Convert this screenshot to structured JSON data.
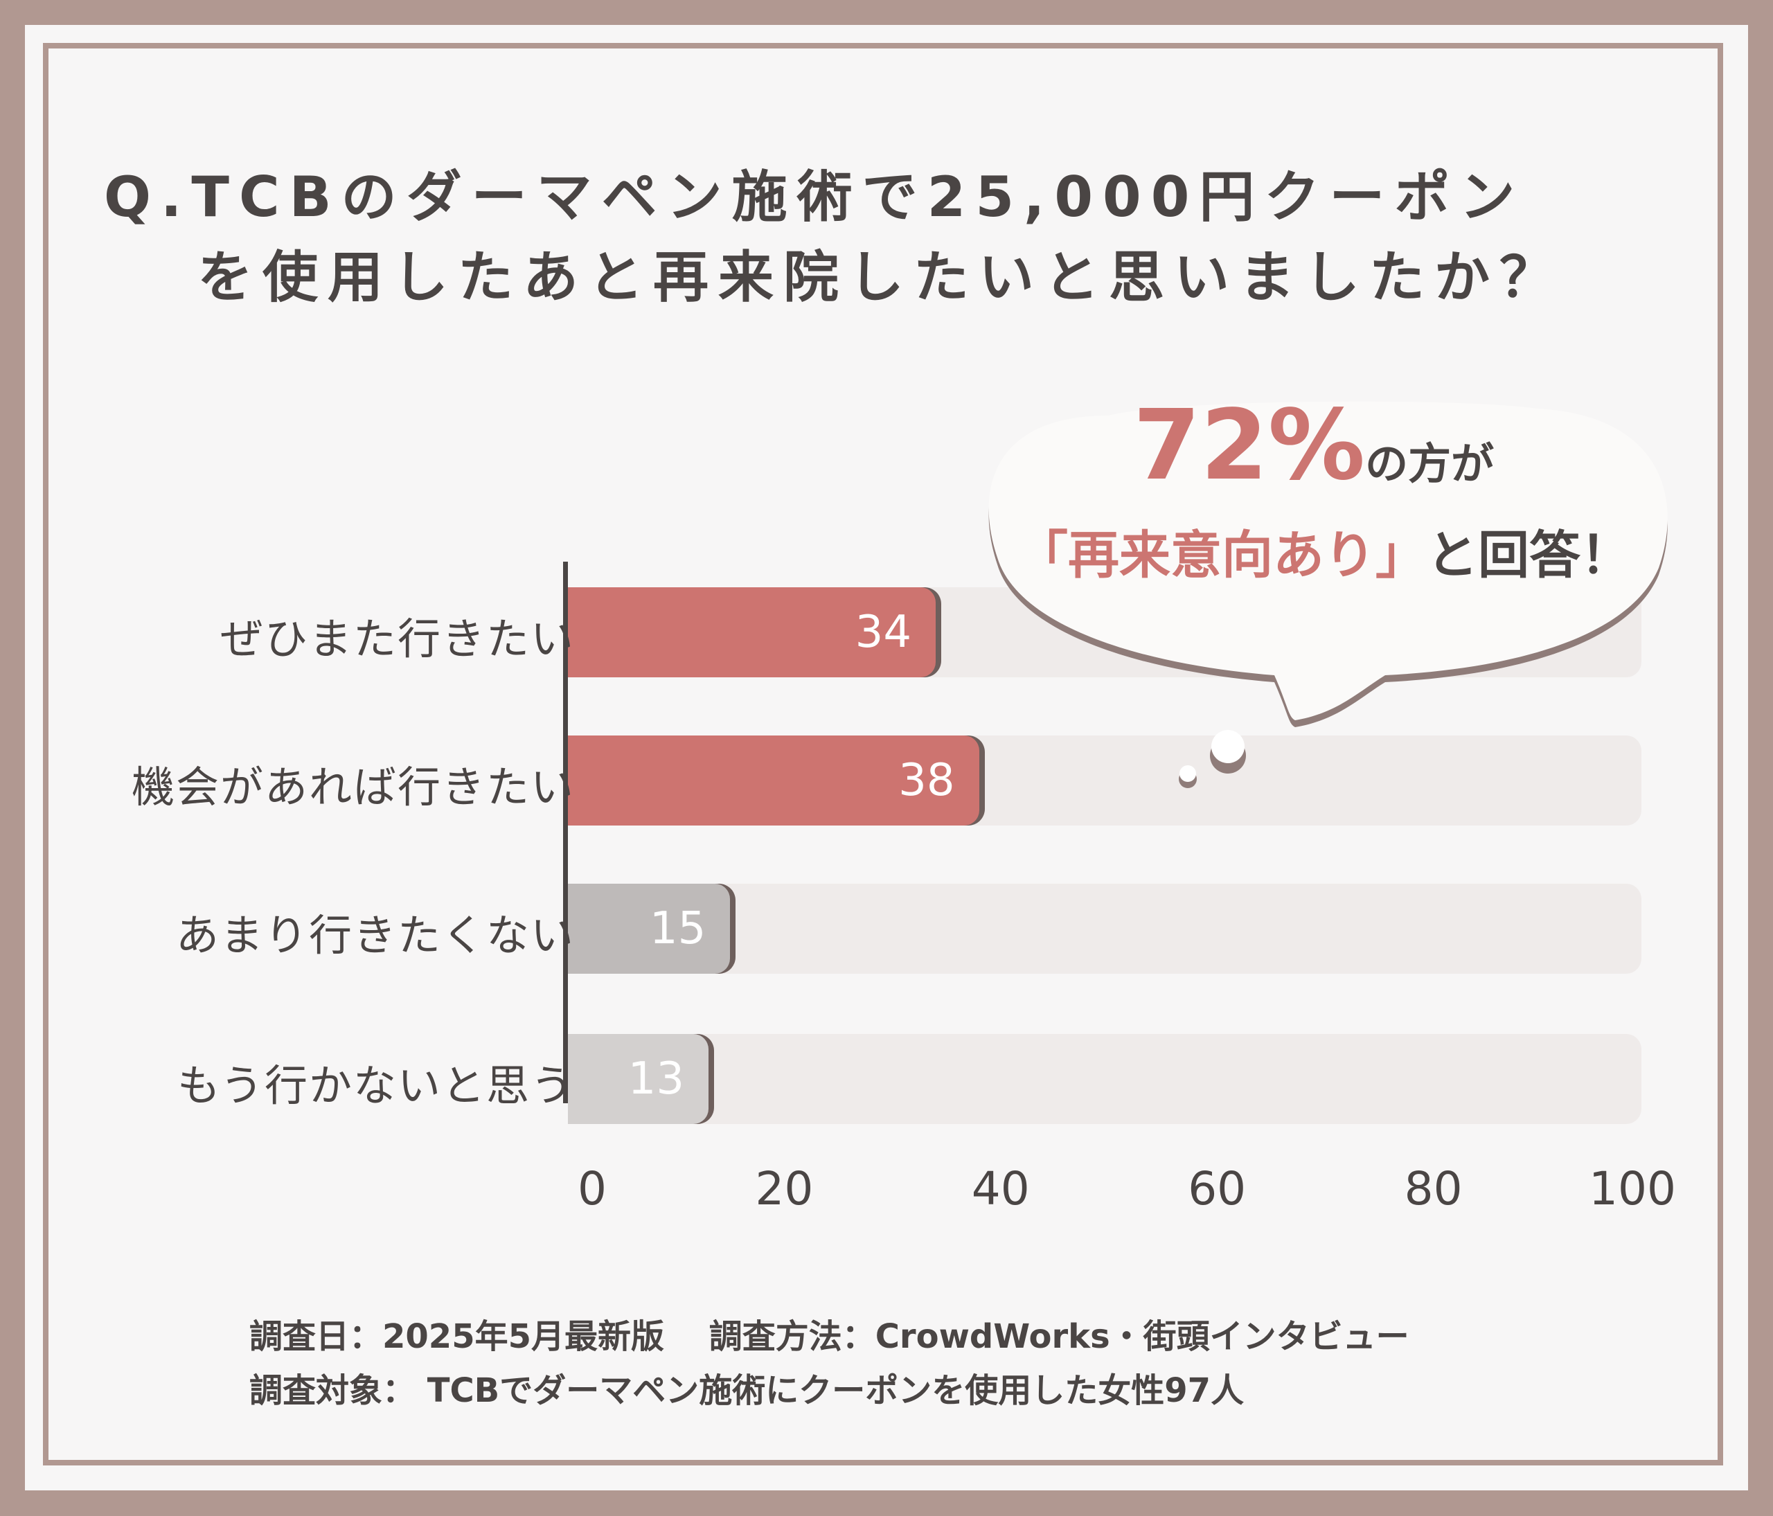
{
  "question": {
    "line1": "Q.TCBのダーマペン施術で25,000円クーポン",
    "line2": "を使用したあと再来院したいと思いましたか？"
  },
  "callout": {
    "percent": "72%",
    "suffix": "の方が",
    "highlight": "「再来意向あり」",
    "rest": "と回答！"
  },
  "colors": {
    "positive_bar": "#cd7470",
    "negative_bar_1": "#bebab9",
    "negative_bar_2": "#d3d0cf",
    "track": "#efebea",
    "frame": "#b19891",
    "text": "#4a4544"
  },
  "chart_data": {
    "type": "bar",
    "orientation": "horizontal",
    "categories": [
      "ぜひまた行きたい",
      "機会があれば行きたい",
      "あまり行きたくない",
      "もう行かないと思う"
    ],
    "values": [
      34,
      38,
      15,
      13
    ],
    "xlim": [
      0,
      100
    ],
    "x_ticks": [
      "0",
      "20",
      "40",
      "60",
      "80",
      "100"
    ]
  },
  "footnote": {
    "line1": "調査日：2025年5月最新版　 調査方法：CrowdWorks・街頭インタビュー",
    "line2": "調査対象： TCBでダーマペン施術にクーポンを使用した女性97人"
  }
}
